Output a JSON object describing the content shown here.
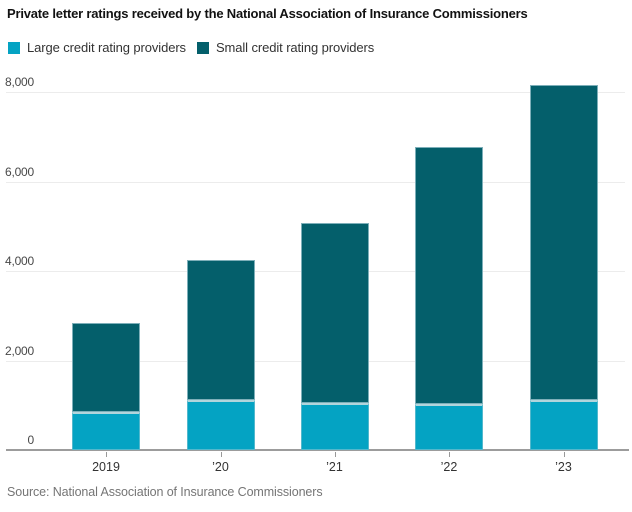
{
  "title": "Private letter ratings received by the National Association of Insurance Commissioners",
  "legend": [
    {
      "label": "Large credit rating providers",
      "color": "#04a3c3"
    },
    {
      "label": "Small credit rating providers",
      "color": "#045f6b"
    }
  ],
  "source": "Source: National Association of Insurance Commissioners",
  "chart_data": {
    "type": "bar",
    "stacked": true,
    "title": "Private letter ratings received by the National Association of Insurance Commissioners",
    "categories": [
      "2019",
      "’20",
      "’21",
      "’22",
      "’23"
    ],
    "series": [
      {
        "name": "Large credit rating providers",
        "color": "#04a3c3",
        "values": [
          850,
          1110,
          1050,
          1030,
          1110
        ]
      },
      {
        "name": "Small credit rating providers",
        "color": "#045f6b",
        "values": [
          1980,
          3130,
          4030,
          5750,
          7050
        ]
      }
    ],
    "totals": [
      2830,
      4240,
      5080,
      6780,
      8160
    ],
    "xlabel": "",
    "ylabel": "",
    "ylim": [
      0,
      8400
    ],
    "yticks": [
      {
        "value": 0,
        "label": "0"
      },
      {
        "value": 2000,
        "label": "2,000"
      },
      {
        "value": 4000,
        "label": "4,000"
      },
      {
        "value": 6000,
        "label": "6,000"
      },
      {
        "value": 8000,
        "label": "8,000"
      }
    ],
    "grid": "horizontal",
    "legend_position": "top-left"
  }
}
